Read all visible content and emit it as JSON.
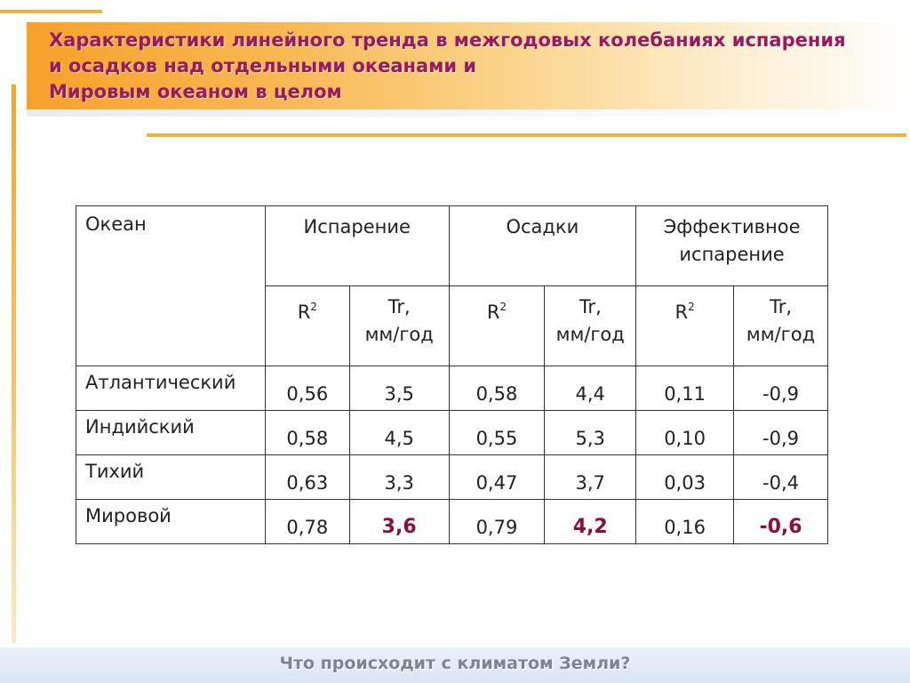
{
  "title": {
    "line1": "Характеристики линейного тренда в межгодовых колебаниях испарения",
    "line2": "и осадков над отдельными океанами и",
    "line3": "Мировым океаном в целом"
  },
  "table": {
    "col_ocean": "Океан",
    "groups": [
      {
        "label": "Испарение"
      },
      {
        "label": "Осадки"
      },
      {
        "label": "Эффективное испарение"
      }
    ],
    "sub_r_base": "R",
    "sub_r_exp": "2",
    "sub_tr_line1": "Tr,",
    "sub_tr_line2": "мм/год",
    "rows": [
      {
        "name": "Атлантический",
        "values": [
          "0,56",
          "3,5",
          "0,58",
          "4,4",
          "0,11",
          "-0,9"
        ]
      },
      {
        "name": "Индийский",
        "values": [
          "0,58",
          "4,5",
          "0,55",
          "5,3",
          "0,10",
          "-0,9"
        ]
      },
      {
        "name": "Тихий",
        "values": [
          "0,63",
          "3,3",
          "0,47",
          "3,7",
          "0,03",
          "-0,4"
        ]
      },
      {
        "name": "Мировой",
        "values": [
          "0,78",
          "3,6",
          "0,79",
          "4,2",
          "0,16",
          "-0,6"
        ]
      }
    ]
  },
  "footer": {
    "text": "Что происходит с климатом Земли?"
  },
  "colors": {
    "accent_orange": "#f3b23c",
    "title_text": "#9a1a5f",
    "highlight_value": "#8a1040",
    "footer_text": "#7d8593"
  }
}
